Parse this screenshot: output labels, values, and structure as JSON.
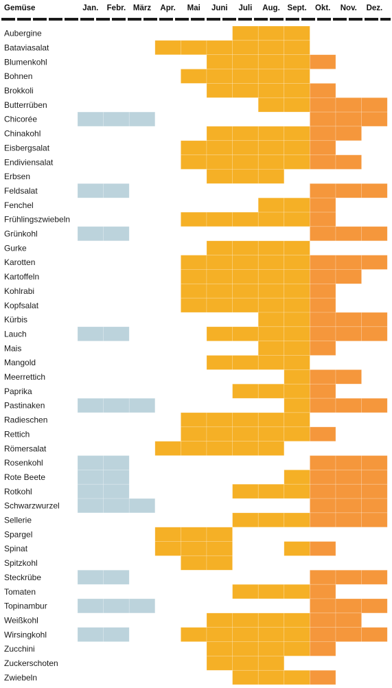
{
  "chart_data": {
    "type": "heatmap",
    "title": "",
    "row_header": "Gemüse",
    "months": [
      "Jan.",
      "Febr.",
      "März",
      "Apr.",
      "Mai",
      "Juni",
      "Juli",
      "Aug.",
      "Sept.",
      "Okt.",
      "Nov.",
      "Dez."
    ],
    "colors": {
      "storage": "#bcd3dc",
      "summer": "#f5b026",
      "autumn": "#f5973c",
      "header_rule": "#1a1a1a",
      "cell_border": "#ffffff"
    },
    "rows": [
      {
        "name": "Aubergine",
        "storage": [],
        "summer": [
          7,
          8,
          9
        ],
        "autumn": []
      },
      {
        "name": "Bataviasalat",
        "storage": [],
        "summer": [
          4,
          5,
          6,
          7,
          8,
          9
        ],
        "autumn": []
      },
      {
        "name": "Blumenkohl",
        "storage": [],
        "summer": [
          6,
          7,
          8,
          9
        ],
        "autumn": [
          10
        ]
      },
      {
        "name": "Bohnen",
        "storage": [],
        "summer": [
          5,
          6,
          7,
          8,
          9
        ],
        "autumn": []
      },
      {
        "name": "Brokkoli",
        "storage": [],
        "summer": [
          6,
          7,
          8,
          9
        ],
        "autumn": [
          10
        ]
      },
      {
        "name": "Butterrüben",
        "storage": [],
        "summer": [
          8,
          9
        ],
        "autumn": [
          10,
          11,
          12
        ]
      },
      {
        "name": "Chicorée",
        "storage": [
          1,
          2,
          3
        ],
        "summer": [],
        "autumn": [
          10,
          11,
          12
        ]
      },
      {
        "name": "Chinakohl",
        "storage": [],
        "summer": [
          6,
          7,
          8,
          9
        ],
        "autumn": [
          10,
          11
        ]
      },
      {
        "name": "Eisbergsalat",
        "storage": [],
        "summer": [
          5,
          6,
          7,
          8,
          9
        ],
        "autumn": [
          10
        ]
      },
      {
        "name": "Endiviensalat",
        "storage": [],
        "summer": [
          5,
          6,
          7,
          8,
          9
        ],
        "autumn": [
          10,
          11
        ]
      },
      {
        "name": "Erbsen",
        "storage": [],
        "summer": [
          6,
          7,
          8
        ],
        "autumn": []
      },
      {
        "name": "Feldsalat",
        "storage": [
          1,
          2
        ],
        "summer": [],
        "autumn": [
          10,
          11,
          12
        ]
      },
      {
        "name": "Fenchel",
        "storage": [],
        "summer": [
          8,
          9
        ],
        "autumn": [
          10
        ]
      },
      {
        "name": "Frühlingszwiebeln",
        "storage": [],
        "summer": [
          5,
          6,
          7,
          8,
          9
        ],
        "autumn": [
          10
        ]
      },
      {
        "name": "Grünkohl",
        "storage": [
          1,
          2
        ],
        "summer": [],
        "autumn": [
          10,
          11,
          12
        ]
      },
      {
        "name": "Gurke",
        "storage": [],
        "summer": [
          6,
          7,
          8,
          9
        ],
        "autumn": []
      },
      {
        "name": "Karotten",
        "storage": [],
        "summer": [
          5,
          6,
          7,
          8,
          9
        ],
        "autumn": [
          10,
          11,
          12
        ]
      },
      {
        "name": "Kartoffeln",
        "storage": [],
        "summer": [
          5,
          6,
          7,
          8,
          9
        ],
        "autumn": [
          10,
          11
        ]
      },
      {
        "name": "Kohlrabi",
        "storage": [],
        "summer": [
          5,
          6,
          7,
          8,
          9
        ],
        "autumn": [
          10
        ]
      },
      {
        "name": "Kopfsalat",
        "storage": [],
        "summer": [
          5,
          6,
          7,
          8,
          9
        ],
        "autumn": [
          10
        ]
      },
      {
        "name": "Kürbis",
        "storage": [],
        "summer": [
          8,
          9
        ],
        "autumn": [
          10,
          11,
          12
        ]
      },
      {
        "name": "Lauch",
        "storage": [
          1,
          2
        ],
        "summer": [
          6,
          7,
          8,
          9
        ],
        "autumn": [
          10,
          11,
          12
        ]
      },
      {
        "name": "Mais",
        "storage": [],
        "summer": [
          8,
          9
        ],
        "autumn": [
          10
        ]
      },
      {
        "name": "Mangold",
        "storage": [],
        "summer": [
          6,
          7,
          8,
          9
        ],
        "autumn": []
      },
      {
        "name": "Meerrettich",
        "storage": [],
        "summer": [
          9
        ],
        "autumn": [
          10,
          11
        ]
      },
      {
        "name": "Paprika",
        "storage": [],
        "summer": [
          7,
          8,
          9
        ],
        "autumn": [
          10
        ]
      },
      {
        "name": "Pastinaken",
        "storage": [
          1,
          2,
          3
        ],
        "summer": [
          9
        ],
        "autumn": [
          10,
          11,
          12
        ]
      },
      {
        "name": "Radieschen",
        "storage": [],
        "summer": [
          5,
          6,
          7,
          8,
          9
        ],
        "autumn": []
      },
      {
        "name": "Rettich",
        "storage": [],
        "summer": [
          5,
          6,
          7,
          8,
          9
        ],
        "autumn": [
          10
        ]
      },
      {
        "name": "Römersalat",
        "storage": [],
        "summer": [
          4,
          5,
          6,
          7,
          8
        ],
        "autumn": []
      },
      {
        "name": "Rosenkohl",
        "storage": [
          1,
          2
        ],
        "summer": [],
        "autumn": [
          10,
          11,
          12
        ]
      },
      {
        "name": "Rote Beete",
        "storage": [
          1,
          2
        ],
        "summer": [
          9
        ],
        "autumn": [
          10,
          11,
          12
        ]
      },
      {
        "name": "Rotkohl",
        "storage": [
          1,
          2
        ],
        "summer": [
          7,
          8,
          9
        ],
        "autumn": [
          10,
          11,
          12
        ]
      },
      {
        "name": "Schwarzwurzel",
        "storage": [
          1,
          2,
          3
        ],
        "summer": [],
        "autumn": [
          10,
          11,
          12
        ]
      },
      {
        "name": "Sellerie",
        "storage": [],
        "summer": [
          7,
          8,
          9
        ],
        "autumn": [
          10,
          11,
          12
        ]
      },
      {
        "name": "Spargel",
        "storage": [],
        "summer": [
          4,
          5,
          6
        ],
        "autumn": []
      },
      {
        "name": "Spinat",
        "storage": [],
        "summer": [
          4,
          5,
          6,
          9
        ],
        "autumn": [
          10
        ]
      },
      {
        "name": "Spitzkohl",
        "storage": [],
        "summer": [
          5,
          6
        ],
        "autumn": []
      },
      {
        "name": "Steckrübe",
        "storage": [
          1,
          2
        ],
        "summer": [],
        "autumn": [
          10,
          11,
          12
        ]
      },
      {
        "name": "Tomaten",
        "storage": [],
        "summer": [
          7,
          8,
          9
        ],
        "autumn": [
          10
        ]
      },
      {
        "name": "Topinambur",
        "storage": [
          1,
          2,
          3
        ],
        "summer": [],
        "autumn": [
          10,
          11,
          12
        ]
      },
      {
        "name": "Weißkohl",
        "storage": [],
        "summer": [
          6,
          7,
          8,
          9
        ],
        "autumn": [
          10,
          11
        ]
      },
      {
        "name": "Wirsingkohl",
        "storage": [
          1,
          2
        ],
        "summer": [
          5,
          6,
          7,
          8,
          9
        ],
        "autumn": [
          10,
          11,
          12
        ]
      },
      {
        "name": "Zucchini",
        "storage": [],
        "summer": [
          6,
          7,
          8,
          9
        ],
        "autumn": [
          10
        ]
      },
      {
        "name": "Zuckerschoten",
        "storage": [],
        "summer": [
          6,
          7,
          8
        ],
        "autumn": []
      },
      {
        "name": "Zwiebeln",
        "storage": [],
        "summer": [
          7,
          8,
          9
        ],
        "autumn": [
          10
        ]
      }
    ]
  }
}
